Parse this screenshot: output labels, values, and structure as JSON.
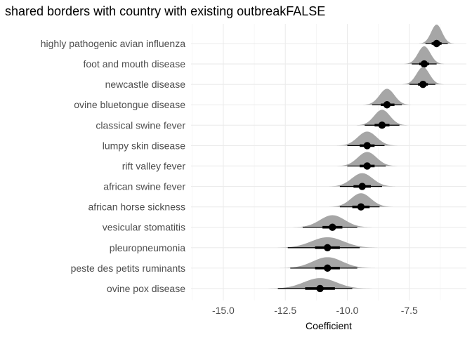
{
  "chart_data": {
    "type": "halfeye",
    "title": "shared borders with country with existing outbreakFALSE",
    "xlabel": "Coefficient",
    "ylabel": "",
    "xlim": [
      -16.3,
      -5.2
    ],
    "x_ticks": [
      -15,
      -12.5,
      -10,
      -7.5
    ],
    "x_tick_labels": [
      "-15.0",
      "-12.5",
      "-10.0",
      "-7.5"
    ],
    "grid": true,
    "legend": "none",
    "colors": {
      "density": "#a6a6a6",
      "point": "#000000",
      "grid": "#ebebeb"
    },
    "series": [
      {
        "name": "highly pathogenic avian influenza",
        "median": -6.4,
        "q66": [
          -6.6,
          -6.2
        ],
        "q95": [
          -6.85,
          -5.95
        ],
        "sd": 0.22
      },
      {
        "name": "foot and mouth disease",
        "median": -6.9,
        "q66": [
          -7.1,
          -6.7
        ],
        "q95": [
          -7.4,
          -6.4
        ],
        "sd": 0.25
      },
      {
        "name": "newcastle disease",
        "median": -6.95,
        "q66": [
          -7.15,
          -6.75
        ],
        "q95": [
          -7.5,
          -6.45
        ],
        "sd": 0.26
      },
      {
        "name": "ovine bluetongue disease",
        "median": -8.4,
        "q66": [
          -8.65,
          -8.1
        ],
        "q95": [
          -9.0,
          -7.8
        ],
        "sd": 0.3
      },
      {
        "name": "classical swine fever",
        "median": -8.6,
        "q66": [
          -8.9,
          -8.3
        ],
        "q95": [
          -9.3,
          -7.9
        ],
        "sd": 0.32
      },
      {
        "name": "lumpy skin disease",
        "median": -9.2,
        "q66": [
          -9.5,
          -8.9
        ],
        "q95": [
          -10.0,
          -8.5
        ],
        "sd": 0.38
      },
      {
        "name": "rift valley fever",
        "median": -9.2,
        "q66": [
          -9.5,
          -8.9
        ],
        "q95": [
          -10.0,
          -8.45
        ],
        "sd": 0.38
      },
      {
        "name": "african swine fever",
        "median": -9.4,
        "q66": [
          -9.75,
          -9.05
        ],
        "q95": [
          -10.3,
          -8.6
        ],
        "sd": 0.42
      },
      {
        "name": "african horse sickness",
        "median": -9.45,
        "q66": [
          -9.8,
          -9.1
        ],
        "q95": [
          -10.3,
          -8.7
        ],
        "sd": 0.4
      },
      {
        "name": "vesicular stomatitis",
        "median": -10.6,
        "q66": [
          -11.0,
          -10.2
        ],
        "q95": [
          -11.8,
          -9.6
        ],
        "sd": 0.5
      },
      {
        "name": "pleuropneumonia",
        "median": -10.8,
        "q66": [
          -11.3,
          -10.3
        ],
        "q95": [
          -12.4,
          -9.5
        ],
        "sd": 0.65
      },
      {
        "name": "peste des petits ruminants",
        "median": -10.8,
        "q66": [
          -11.3,
          -10.3
        ],
        "q95": [
          -12.3,
          -9.6
        ],
        "sd": 0.6
      },
      {
        "name": "ovine pox disease",
        "median": -11.1,
        "q66": [
          -11.7,
          -10.5
        ],
        "q95": [
          -12.8,
          -9.8
        ],
        "sd": 0.65
      }
    ]
  }
}
